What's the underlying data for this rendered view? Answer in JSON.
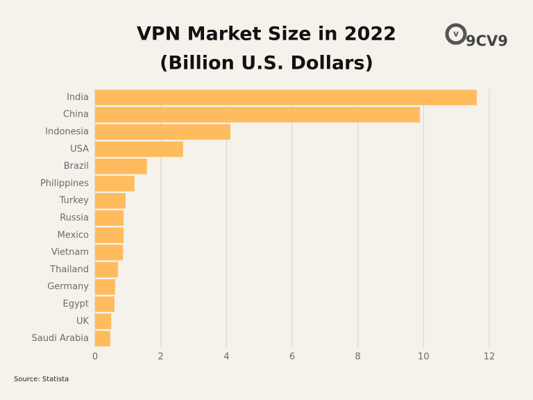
{
  "chart_data": {
    "type": "bar",
    "orientation": "horizontal",
    "title": "VPN Market Size in 2022",
    "subtitle": "(Billion U.S. Dollars)",
    "logo": "9CV9",
    "source": "Source: Statista",
    "categories": [
      "India",
      "China",
      "Indonesia",
      "USA",
      "Brazil",
      "Philippines",
      "Turkey",
      "Russia",
      "Mexico",
      "Vietnam",
      "Thailand",
      "Germany",
      "Egypt",
      "UK",
      "Saudi Arabia"
    ],
    "values": [
      11.62,
      9.89,
      4.12,
      2.68,
      1.58,
      1.2,
      0.93,
      0.87,
      0.87,
      0.85,
      0.7,
      0.61,
      0.59,
      0.49,
      0.46
    ],
    "color": "#ffbc5e",
    "xlim": [
      0,
      12
    ],
    "xticks": [
      0,
      2,
      4,
      6,
      8,
      10,
      12
    ],
    "grid": true
  }
}
